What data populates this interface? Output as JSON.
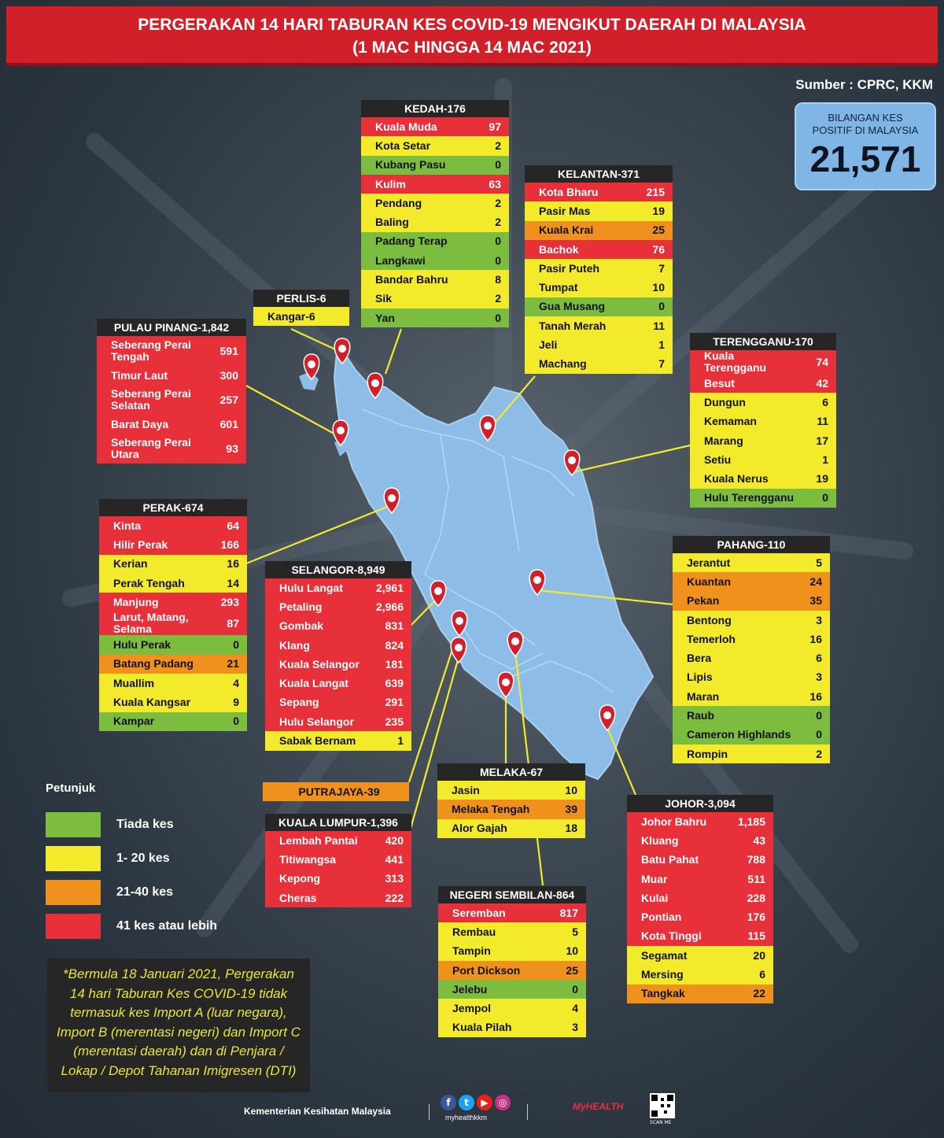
{
  "header": {
    "line1": "PERGERAKAN 14 HARI TABURAN KES COVID-19 MENGIKUT DAERAH DI MALAYSIA",
    "line2": "(1 MAC HINGGA 14 MAC 2021)"
  },
  "source": "Sumber : CPRC, KKM",
  "total": {
    "label": "BILANGAN KES\nPOSITIF DI MALAYSIA",
    "value": "21,571"
  },
  "colors": {
    "red": "#e8303a",
    "yellow": "#f2ea2a",
    "orange": "#f0901d",
    "green": "#7cbc3f",
    "map": "#8dbde6",
    "pin": "#d12029"
  },
  "states": {
    "kedah": {
      "title": "KEDAH-176",
      "rows": [
        {
          "name": "Kuala Muda",
          "value": "97",
          "level": "r"
        },
        {
          "name": "Kota Setar",
          "value": "2",
          "level": "y"
        },
        {
          "name": "Kubang Pasu",
          "value": "0",
          "level": "g"
        },
        {
          "name": "Kulim",
          "value": "63",
          "level": "r"
        },
        {
          "name": "Pendang",
          "value": "2",
          "level": "y"
        },
        {
          "name": "Baling",
          "value": "2",
          "level": "y"
        },
        {
          "name": "Padang Terap",
          "value": "0",
          "level": "g"
        },
        {
          "name": "Langkawi",
          "value": "0",
          "level": "g"
        },
        {
          "name": "Bandar Bahru",
          "value": "8",
          "level": "y"
        },
        {
          "name": "Sik",
          "value": "2",
          "level": "y"
        },
        {
          "name": "Yan",
          "value": "0",
          "level": "g"
        }
      ]
    },
    "kelantan": {
      "title": "KELANTAN-371",
      "rows": [
        {
          "name": "Kota Bharu",
          "value": "215",
          "level": "r"
        },
        {
          "name": "Pasir Mas",
          "value": "19",
          "level": "y"
        },
        {
          "name": "Kuala Krai",
          "value": "25",
          "level": "o"
        },
        {
          "name": "Bachok",
          "value": "76",
          "level": "r"
        },
        {
          "name": "Pasir Puteh",
          "value": "7",
          "level": "y"
        },
        {
          "name": "Tumpat",
          "value": "10",
          "level": "y"
        },
        {
          "name": "Gua Musang",
          "value": "0",
          "level": "g"
        },
        {
          "name": "Tanah Merah",
          "value": "11",
          "level": "y"
        },
        {
          "name": "Jeli",
          "value": "1",
          "level": "y"
        },
        {
          "name": "Machang",
          "value": "7",
          "level": "y"
        }
      ]
    },
    "perlis": {
      "title": "PERLIS-6",
      "rows": [
        {
          "name": "Kangar-6",
          "value": "",
          "level": "y"
        }
      ]
    },
    "pulau_pinang": {
      "title": "PULAU PINANG-1,842",
      "rows": [
        {
          "name": "Seberang Perai\nTengah",
          "value": "591",
          "level": "r"
        },
        {
          "name": "Timur Laut",
          "value": "300",
          "level": "r"
        },
        {
          "name": "Seberang Perai\nSelatan",
          "value": "257",
          "level": "r"
        },
        {
          "name": "Barat Daya",
          "value": "601",
          "level": "r"
        },
        {
          "name": "Seberang Perai\nUtara",
          "value": "93",
          "level": "r"
        }
      ]
    },
    "terengganu": {
      "title": "TERENGGANU-170",
      "rows": [
        {
          "name": "Kuala\nTerengganu",
          "value": "74",
          "level": "r"
        },
        {
          "name": "Besut",
          "value": "42",
          "level": "r"
        },
        {
          "name": "Dungun",
          "value": "6",
          "level": "y"
        },
        {
          "name": "Kemaman",
          "value": "11",
          "level": "y"
        },
        {
          "name": "Marang",
          "value": "17",
          "level": "y"
        },
        {
          "name": "Setiu",
          "value": "1",
          "level": "y"
        },
        {
          "name": "Kuala Nerus",
          "value": "19",
          "level": "y"
        },
        {
          "name": "Hulu Terengganu",
          "value": "0",
          "level": "g"
        }
      ]
    },
    "perak": {
      "title": "PERAK-674",
      "rows": [
        {
          "name": "Kinta",
          "value": "64",
          "level": "r"
        },
        {
          "name": "Hilir Perak",
          "value": "166",
          "level": "r"
        },
        {
          "name": "Kerian",
          "value": "16",
          "level": "y"
        },
        {
          "name": "Perak Tengah",
          "value": "14",
          "level": "y"
        },
        {
          "name": "Manjung",
          "value": "293",
          "level": "r"
        },
        {
          "name": "Larut, Matang,\nSelama",
          "value": "87",
          "level": "r"
        },
        {
          "name": "Hulu Perak",
          "value": "0",
          "level": "g"
        },
        {
          "name": "Batang Padang",
          "value": "21",
          "level": "o"
        },
        {
          "name": "Muallim",
          "value": "4",
          "level": "y"
        },
        {
          "name": "Kuala Kangsar",
          "value": "9",
          "level": "y"
        },
        {
          "name": "Kampar",
          "value": "0",
          "level": "g"
        }
      ]
    },
    "selangor": {
      "title": "SELANGOR-8,949",
      "rows": [
        {
          "name": "Hulu Langat",
          "value": "2,961",
          "level": "r"
        },
        {
          "name": "Petaling",
          "value": "2,966",
          "level": "r"
        },
        {
          "name": "Gombak",
          "value": "831",
          "level": "r"
        },
        {
          "name": "Klang",
          "value": "824",
          "level": "r"
        },
        {
          "name": "Kuala Selangor",
          "value": "181",
          "level": "r"
        },
        {
          "name": "Kuala Langat",
          "value": "639",
          "level": "r"
        },
        {
          "name": "Sepang",
          "value": "291",
          "level": "r"
        },
        {
          "name": "Hulu Selangor",
          "value": "235",
          "level": "r"
        },
        {
          "name": "Sabak Bernam",
          "value": "1",
          "level": "y"
        }
      ]
    },
    "pahang": {
      "title": "PAHANG-110",
      "rows": [
        {
          "name": "Jerantut",
          "value": "5",
          "level": "y"
        },
        {
          "name": "Kuantan",
          "value": "24",
          "level": "o"
        },
        {
          "name": "Pekan",
          "value": "35",
          "level": "o"
        },
        {
          "name": "Bentong",
          "value": "3",
          "level": "y"
        },
        {
          "name": "Temerloh",
          "value": "16",
          "level": "y"
        },
        {
          "name": "Bera",
          "value": "6",
          "level": "y"
        },
        {
          "name": "Lipis",
          "value": "3",
          "level": "y"
        },
        {
          "name": "Maran",
          "value": "16",
          "level": "y"
        },
        {
          "name": "Raub",
          "value": "0",
          "level": "g"
        },
        {
          "name": "Cameron Highlands",
          "value": "0",
          "level": "g"
        },
        {
          "name": "Rompin",
          "value": "2",
          "level": "y"
        }
      ]
    },
    "putrajaya": {
      "title": "PUTRAJAYA-39"
    },
    "kuala_lumpur": {
      "title": "KUALA LUMPUR-1,396",
      "rows": [
        {
          "name": "Lembah Pantai",
          "value": "420",
          "level": "r"
        },
        {
          "name": "Titiwangsa",
          "value": "441",
          "level": "r"
        },
        {
          "name": "Kepong",
          "value": "313",
          "level": "r"
        },
        {
          "name": "Cheras",
          "value": "222",
          "level": "r"
        }
      ]
    },
    "melaka": {
      "title": "MELAKA-67",
      "rows": [
        {
          "name": "Jasin",
          "value": "10",
          "level": "y"
        },
        {
          "name": "Melaka Tengah",
          "value": "39",
          "level": "o"
        },
        {
          "name": "Alor Gajah",
          "value": "18",
          "level": "y"
        }
      ]
    },
    "johor": {
      "title": "JOHOR-3,094",
      "rows": [
        {
          "name": "Johor Bahru",
          "value": "1,185",
          "level": "r"
        },
        {
          "name": "Kluang",
          "value": "43",
          "level": "r"
        },
        {
          "name": "Batu Pahat",
          "value": "788",
          "level": "r"
        },
        {
          "name": "Muar",
          "value": "511",
          "level": "r"
        },
        {
          "name": "Kulai",
          "value": "228",
          "level": "r"
        },
        {
          "name": "Pontian",
          "value": "176",
          "level": "r"
        },
        {
          "name": "Kota Tinggi",
          "value": "115",
          "level": "r"
        },
        {
          "name": "Segamat",
          "value": "20",
          "level": "y"
        },
        {
          "name": "Mersing",
          "value": "6",
          "level": "y"
        },
        {
          "name": "Tangkak",
          "value": "22",
          "level": "o"
        }
      ]
    },
    "negeri_sembilan": {
      "title": "NEGERI SEMBILAN-864",
      "rows": [
        {
          "name": "Seremban",
          "value": "817",
          "level": "r"
        },
        {
          "name": "Rembau",
          "value": "5",
          "level": "y"
        },
        {
          "name": "Tampin",
          "value": "10",
          "level": "y"
        },
        {
          "name": "Port Dickson",
          "value": "25",
          "level": "o"
        },
        {
          "name": "Jelebu",
          "value": "0",
          "level": "g"
        },
        {
          "name": "Jempol",
          "value": "4",
          "level": "y"
        },
        {
          "name": "Kuala Pilah",
          "value": "3",
          "level": "y"
        }
      ]
    }
  },
  "legend": {
    "title": "Petunjuk",
    "items": [
      {
        "label": "Tiada kes",
        "color": "#7cbc3f"
      },
      {
        "label": "1- 20 kes",
        "color": "#f2ea2a"
      },
      {
        "label": "21-40 kes",
        "color": "#f0901d"
      },
      {
        "label": "41 kes atau lebih",
        "color": "#e8303a"
      }
    ]
  },
  "note": "*Bermula 18 Januari 2021, Pergerakan 14 hari Taburan Kes COVID-19 tidak termasuk kes Import A (luar negara), Import B (merentasi negeri) dan Import C (merentasi daerah) dan di Penjara / Lokap / Depot Tahanan Imigresen (DTI)",
  "footer": {
    "ministry": "Kementerian Kesihatan Malaysia",
    "handle": "myhealthkkm",
    "brand": "MyHEALTH",
    "scan": "SCAN ME"
  }
}
